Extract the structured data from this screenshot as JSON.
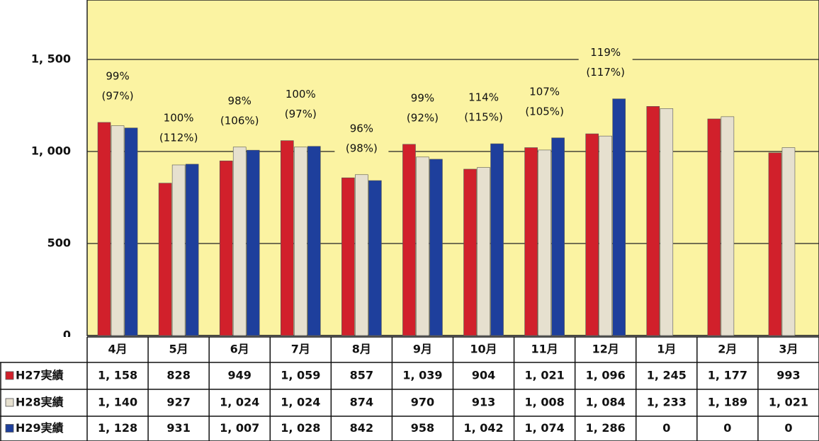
{
  "chart_data": {
    "type": "bar",
    "categories": [
      "4月",
      "5月",
      "6月",
      "7月",
      "8月",
      "9月",
      "10月",
      "11月",
      "12月",
      "1月",
      "2月",
      "3月"
    ],
    "series": [
      {
        "name": "H27実績",
        "color": "#d1202b",
        "values": [
          1158,
          828,
          949,
          1059,
          857,
          1039,
          904,
          1021,
          1096,
          1245,
          1177,
          993
        ],
        "value_labels": [
          "1, 158",
          "828",
          "949",
          "1, 059",
          "857",
          "1, 039",
          "904",
          "1, 021",
          "1, 096",
          "1, 245",
          "1, 177",
          "993"
        ]
      },
      {
        "name": "H28実績",
        "color": "#e6e0cf",
        "values": [
          1140,
          927,
          1024,
          1024,
          874,
          970,
          913,
          1008,
          1084,
          1233,
          1189,
          1021
        ],
        "value_labels": [
          "1, 140",
          "927",
          "1, 024",
          "1, 024",
          "874",
          "970",
          "913",
          "1, 008",
          "1, 084",
          "1, 233",
          "1, 189",
          "1, 021"
        ]
      },
      {
        "name": "H29実績",
        "color": "#1e3f9c",
        "values": [
          1128,
          931,
          1007,
          1028,
          842,
          958,
          1042,
          1074,
          1286,
          0,
          0,
          0
        ],
        "value_labels": [
          "1, 128",
          "931",
          "1, 007",
          "1, 028",
          "842",
          "958",
          "1, 042",
          "1, 074",
          "1, 286",
          "0",
          "0",
          "0"
        ]
      }
    ],
    "annotations": [
      [
        "99%",
        "(97%)"
      ],
      [
        "100%",
        "(112%)"
      ],
      [
        "98%",
        "(106%)"
      ],
      [
        "100%",
        "(97%)"
      ],
      [
        "96%",
        "(98%)"
      ],
      [
        "99%",
        "(92%)"
      ],
      [
        "114%",
        "(115%)"
      ],
      [
        "107%",
        "(105%)"
      ],
      [
        "119%",
        "(117%)"
      ]
    ],
    "ylim": [
      0,
      1800
    ],
    "yticks": [
      0,
      500,
      {
        "value": 1000,
        "label": "1, 000"
      },
      {
        "value": 1500,
        "label": "1, 500"
      }
    ],
    "grid": true
  }
}
